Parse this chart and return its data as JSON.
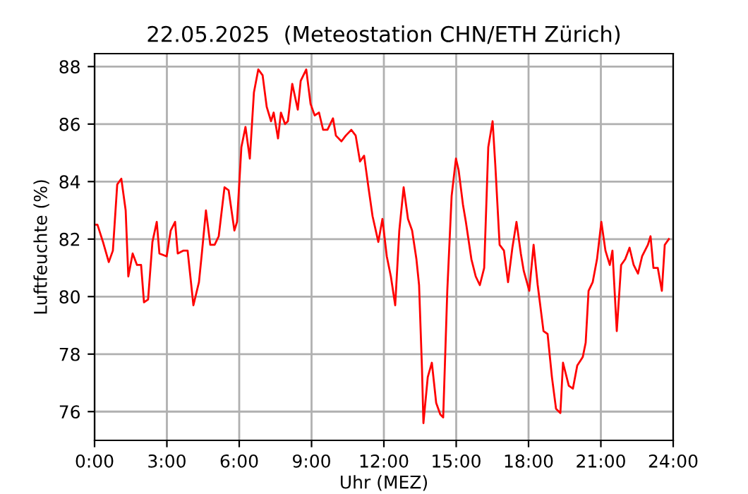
{
  "chart_data": {
    "type": "line",
    "title": "22.05.2025  (Meteostation CHN/ETH Zürich)",
    "xlabel": "Uhr (MEZ)",
    "ylabel": "Luftfeuchte (%)",
    "xlim": [
      0,
      24
    ],
    "xticks": [
      {
        "value": 0,
        "label": "0:00"
      },
      {
        "value": 3,
        "label": "3:00"
      },
      {
        "value": 6,
        "label": "6:00"
      },
      {
        "value": 9,
        "label": "9:00"
      },
      {
        "value": 12,
        "label": "12:00"
      },
      {
        "value": 15,
        "label": "15:00"
      },
      {
        "value": 18,
        "label": "18:00"
      },
      {
        "value": 21,
        "label": "21:00"
      },
      {
        "value": 24,
        "label": "24:00"
      }
    ],
    "ylim": [
      75.0,
      88.45
    ],
    "yticks": [
      76,
      78,
      80,
      82,
      84,
      86,
      88
    ],
    "grid": true,
    "series": [
      {
        "color": "#ff0000",
        "x": [
          0,
          0.12,
          0.35,
          0.59,
          0.76,
          0.94,
          1.11,
          1.29,
          1.4,
          1.58,
          1.76,
          1.93,
          2.05,
          2.22,
          2.4,
          2.58,
          2.69,
          2.99,
          3.16,
          3.34,
          3.45,
          3.69,
          3.86,
          4.1,
          4.33,
          4.45,
          4.62,
          4.8,
          4.98,
          5.15,
          5.39,
          5.56,
          5.8,
          5.91,
          6.09,
          6.26,
          6.44,
          6.61,
          6.79,
          6.97,
          7.14,
          7.32,
          7.43,
          7.61,
          7.73,
          7.9,
          8.02,
          8.2,
          8.43,
          8.55,
          8.78,
          8.96,
          9.13,
          9.31,
          9.48,
          9.66,
          9.89,
          10.01,
          10.24,
          10.42,
          10.65,
          10.83,
          11.01,
          11.18,
          11.36,
          11.53,
          11.77,
          11.94,
          12.12,
          12.29,
          12.47,
          12.64,
          12.82,
          13.0,
          13.17,
          13.35,
          13.46,
          13.58,
          13.64,
          13.82,
          13.99,
          14.17,
          14.34,
          14.46,
          14.63,
          14.81,
          14.99,
          15.1,
          15.28,
          15.4,
          15.63,
          15.81,
          15.98,
          16.16,
          16.33,
          16.51,
          16.62,
          16.8,
          16.98,
          17.15,
          17.33,
          17.5,
          17.68,
          17.8,
          18.03,
          18.21,
          18.38,
          18.62,
          18.79,
          18.97,
          19.14,
          19.32,
          19.43,
          19.67,
          19.84,
          20.02,
          20.25,
          20.37,
          20.49,
          20.66,
          20.84,
          21.02,
          21.19,
          21.37,
          21.48,
          21.66,
          21.84,
          22.01,
          22.19,
          22.36,
          22.54,
          22.71,
          22.95,
          23.06,
          23.18,
          23.36,
          23.53,
          23.65,
          23.82
        ],
        "values": [
          82.5,
          82.5,
          81.9,
          81.2,
          81.6,
          83.9,
          84.1,
          83.0,
          80.7,
          81.5,
          81.1,
          81.1,
          79.8,
          79.9,
          81.9,
          82.6,
          81.5,
          81.4,
          82.3,
          82.6,
          81.5,
          81.6,
          81.6,
          79.7,
          80.5,
          81.5,
          83.0,
          81.8,
          81.8,
          82.1,
          83.8,
          83.7,
          82.3,
          82.6,
          85.2,
          85.9,
          84.8,
          87.1,
          87.9,
          87.7,
          86.6,
          86.1,
          86.4,
          85.5,
          86.4,
          86.0,
          86.1,
          87.4,
          86.5,
          87.5,
          87.9,
          86.7,
          86.3,
          86.4,
          85.8,
          85.8,
          86.2,
          85.6,
          85.4,
          85.6,
          85.8,
          85.6,
          84.7,
          84.9,
          83.8,
          82.8,
          81.9,
          82.7,
          81.4,
          80.7,
          79.7,
          82.3,
          83.8,
          82.7,
          82.3,
          81.3,
          80.4,
          77.5,
          75.6,
          77.2,
          77.7,
          76.3,
          75.9,
          75.8,
          80.2,
          83.5,
          84.8,
          84.4,
          83.2,
          82.6,
          81.3,
          80.7,
          80.4,
          81.0,
          85.2,
          86.1,
          84.6,
          81.8,
          81.6,
          80.5,
          81.7,
          82.6,
          81.5,
          80.9,
          80.2,
          81.8,
          80.4,
          78.8,
          78.7,
          77.2,
          76.1,
          75.95,
          77.7,
          76.9,
          76.8,
          77.6,
          77.9,
          78.4,
          80.2,
          80.5,
          81.3,
          82.6,
          81.6,
          81.1,
          81.6,
          78.8,
          81.1,
          81.3,
          81.7,
          81.1,
          80.8,
          81.4,
          81.8,
          82.1,
          81.0,
          81.0,
          80.2,
          81.8,
          82.0
        ]
      }
    ]
  }
}
